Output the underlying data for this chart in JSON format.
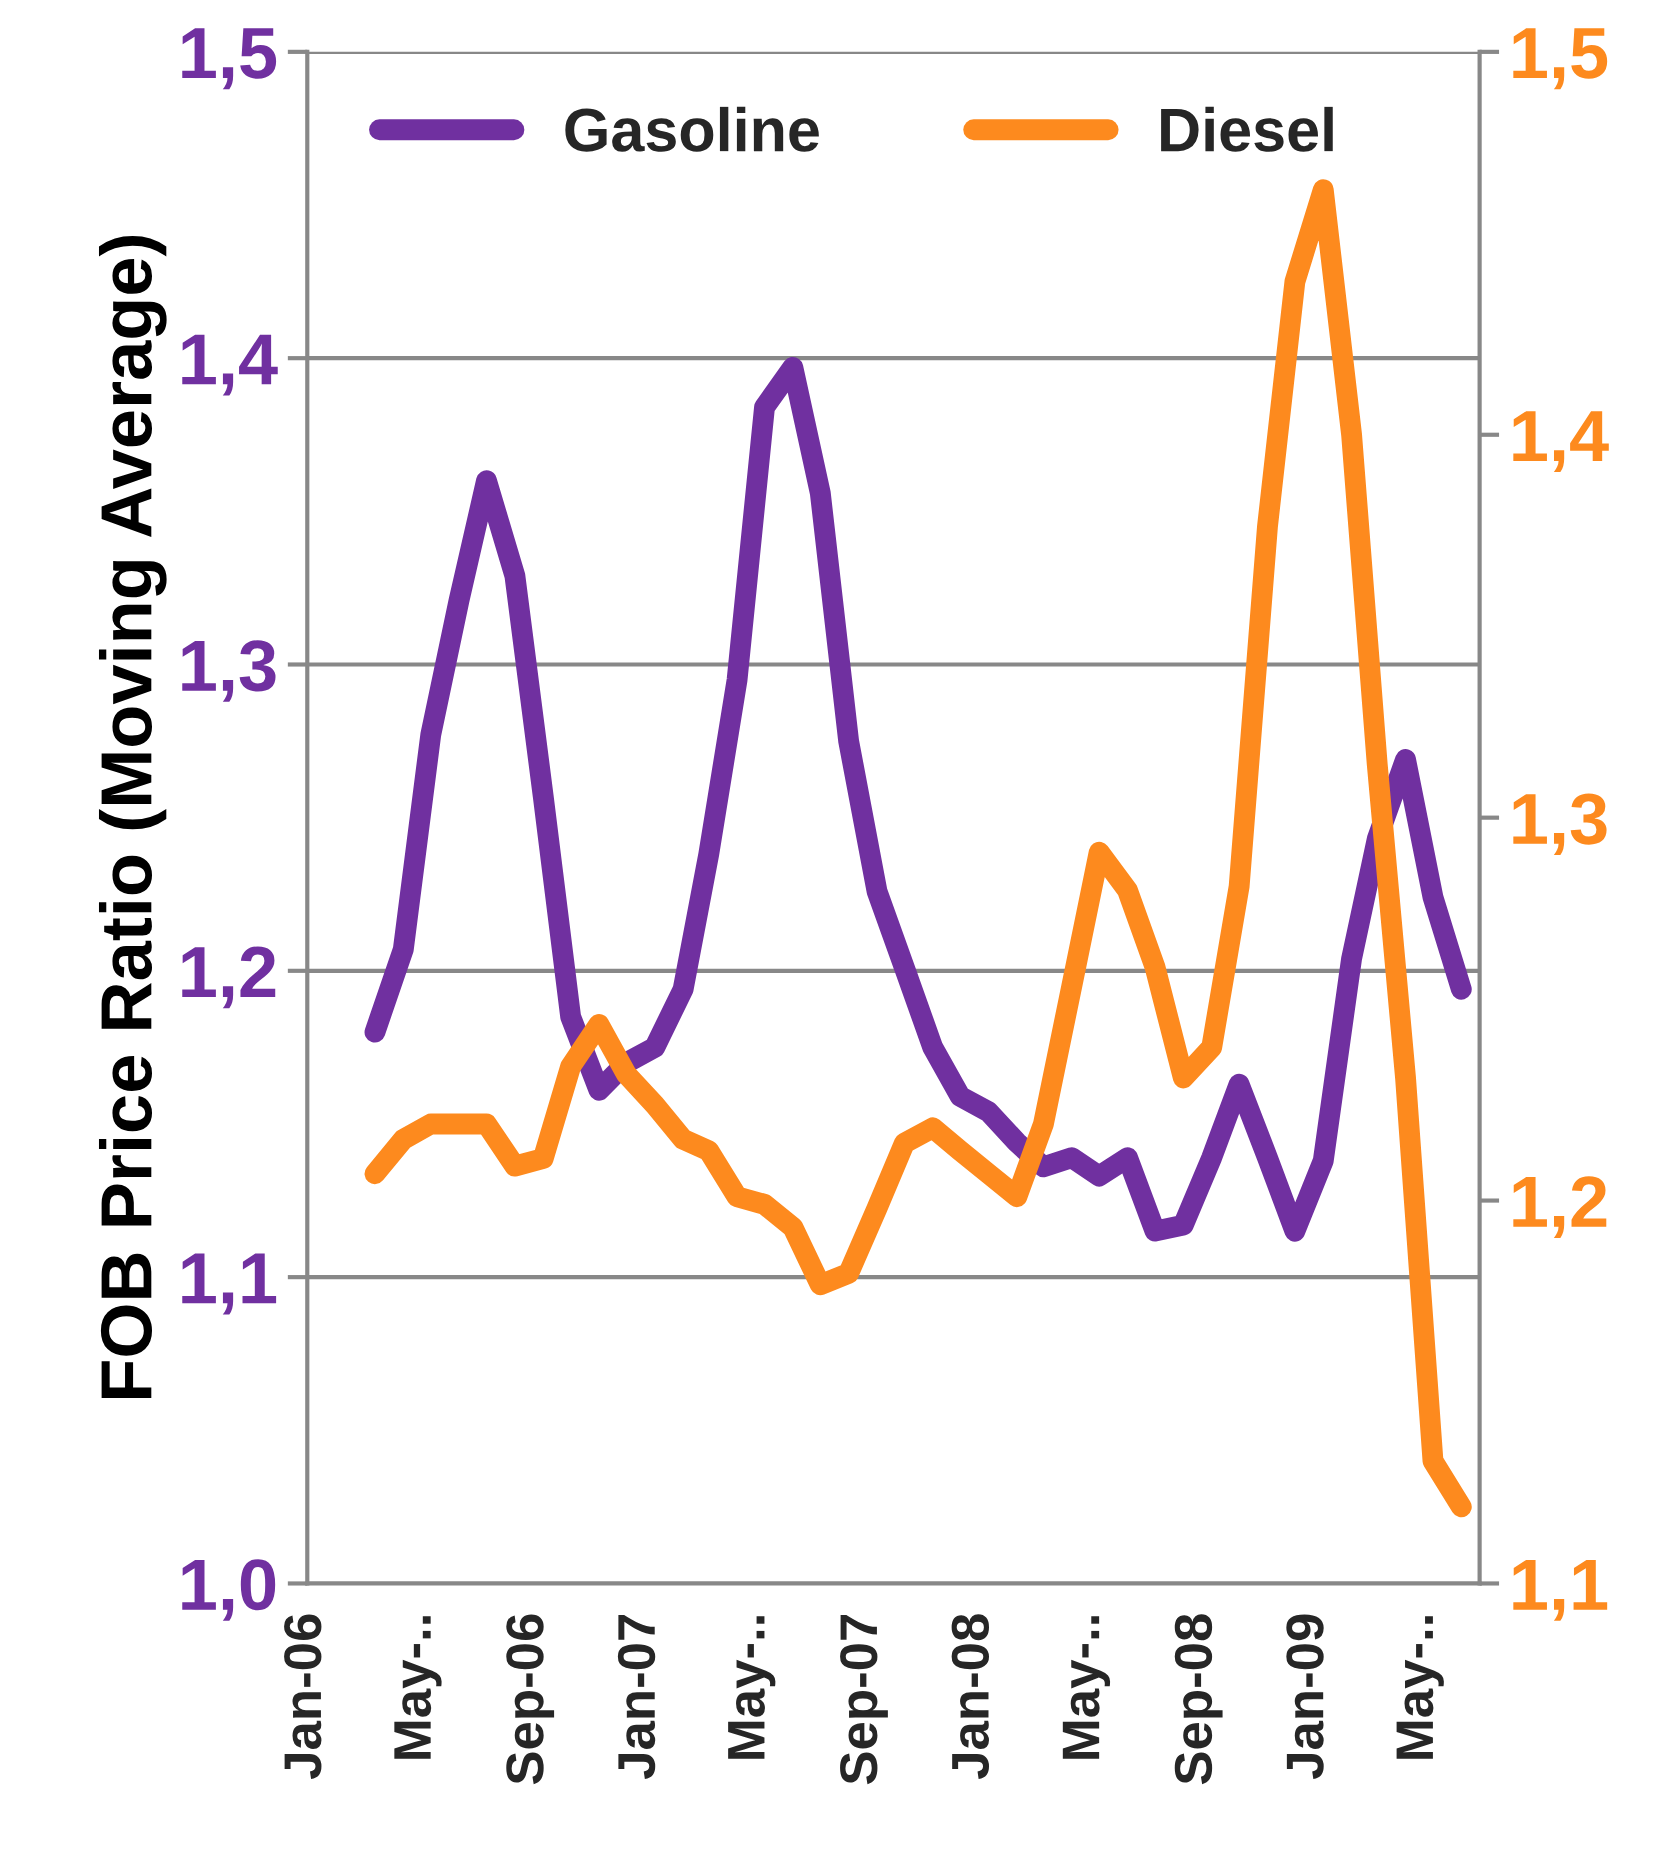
{
  "chart_data": {
    "type": "line",
    "ylabel": "FOB Price Ratio (Moving Average)",
    "x": [
      "2006-03-16",
      "2006-04-16",
      "2006-05-16",
      "2006-06-16",
      "2006-07-16",
      "2006-08-16",
      "2006-09-16",
      "2006-10-16",
      "2006-11-16",
      "2006-12-16",
      "2007-01-16",
      "2007-02-16",
      "2007-03-16",
      "2007-04-16",
      "2007-05-16",
      "2007-06-16",
      "2007-07-16",
      "2007-08-16",
      "2007-09-16",
      "2007-10-16",
      "2007-11-16",
      "2007-12-16",
      "2008-01-16",
      "2008-02-16",
      "2008-03-16",
      "2008-04-16",
      "2008-05-16",
      "2008-06-16",
      "2008-07-16",
      "2008-08-16",
      "2008-09-16",
      "2008-10-16",
      "2008-11-16",
      "2008-12-16",
      "2009-01-16",
      "2009-02-16",
      "2009-03-16",
      "2009-04-16",
      "2009-05-16",
      "2009-06-16"
    ],
    "series": [
      {
        "name": "Gasoline",
        "color": "#7030a0",
        "axis": "y",
        "values": [
          1.18,
          1.207,
          1.277,
          1.321,
          1.36,
          1.329,
          1.257,
          1.185,
          1.161,
          1.17,
          1.175,
          1.194,
          1.238,
          1.295,
          1.384,
          1.397,
          1.356,
          1.275,
          1.226,
          1.201,
          1.175,
          1.159,
          1.154,
          1.144,
          1.136,
          1.139,
          1.133,
          1.139,
          1.115,
          1.117,
          1.139,
          1.163,
          1.139,
          1.115,
          1.138,
          1.204,
          1.243,
          1.269,
          1.224,
          1.194
        ]
      },
      {
        "name": "Diesel",
        "color": "#fd8a1e",
        "axis": "y2",
        "values": [
          1.207,
          1.216,
          1.22,
          1.22,
          1.22,
          1.209,
          1.211,
          1.235,
          1.246,
          1.233,
          1.225,
          1.216,
          1.213,
          1.201,
          1.199,
          1.193,
          1.178,
          1.181,
          1.198,
          1.215,
          1.219,
          1.213,
          1.207,
          1.201,
          1.22,
          1.256,
          1.291,
          1.281,
          1.261,
          1.232,
          1.24,
          1.282,
          1.376,
          1.44,
          1.464,
          1.4,
          1.314,
          1.232,
          1.132,
          1.12
        ]
      }
    ],
    "xlim": [
      "2006-01-01",
      "2009-07-06"
    ],
    "xticks": [
      {
        "value": "2006-01-01",
        "label": "Jan-06"
      },
      {
        "value": "2006-05-01",
        "label": "May-.."
      },
      {
        "value": "2006-09-01",
        "label": "Sep-06"
      },
      {
        "value": "2007-01-01",
        "label": "Jan-07"
      },
      {
        "value": "2007-05-01",
        "label": "May-.."
      },
      {
        "value": "2007-09-01",
        "label": "Sep-07"
      },
      {
        "value": "2008-01-01",
        "label": "Jan-08"
      },
      {
        "value": "2008-05-01",
        "label": "May-.."
      },
      {
        "value": "2008-09-01",
        "label": "Sep-08"
      },
      {
        "value": "2009-01-01",
        "label": "Jan-09"
      },
      {
        "value": "2009-05-01",
        "label": "May-.."
      }
    ],
    "ylim": [
      1.0,
      1.5
    ],
    "yticks": [
      {
        "value": 1.0,
        "label": "1,0"
      },
      {
        "value": 1.1,
        "label": "1,1"
      },
      {
        "value": 1.2,
        "label": "1,2"
      },
      {
        "value": 1.3,
        "label": "1,3"
      },
      {
        "value": 1.4,
        "label": "1,4"
      },
      {
        "value": 1.5,
        "label": "1,5"
      }
    ],
    "y2lim": [
      1.1,
      1.5
    ],
    "y2ticks": [
      {
        "value": 1.1,
        "label": "1,1"
      },
      {
        "value": 1.2,
        "label": "1,2"
      },
      {
        "value": 1.3,
        "label": "1,3"
      },
      {
        "value": 1.4,
        "label": "1,4"
      },
      {
        "value": 1.5,
        "label": "1,5"
      }
    ],
    "grid": "y",
    "legend": "top",
    "marker": "none",
    "line_style": "solid"
  }
}
